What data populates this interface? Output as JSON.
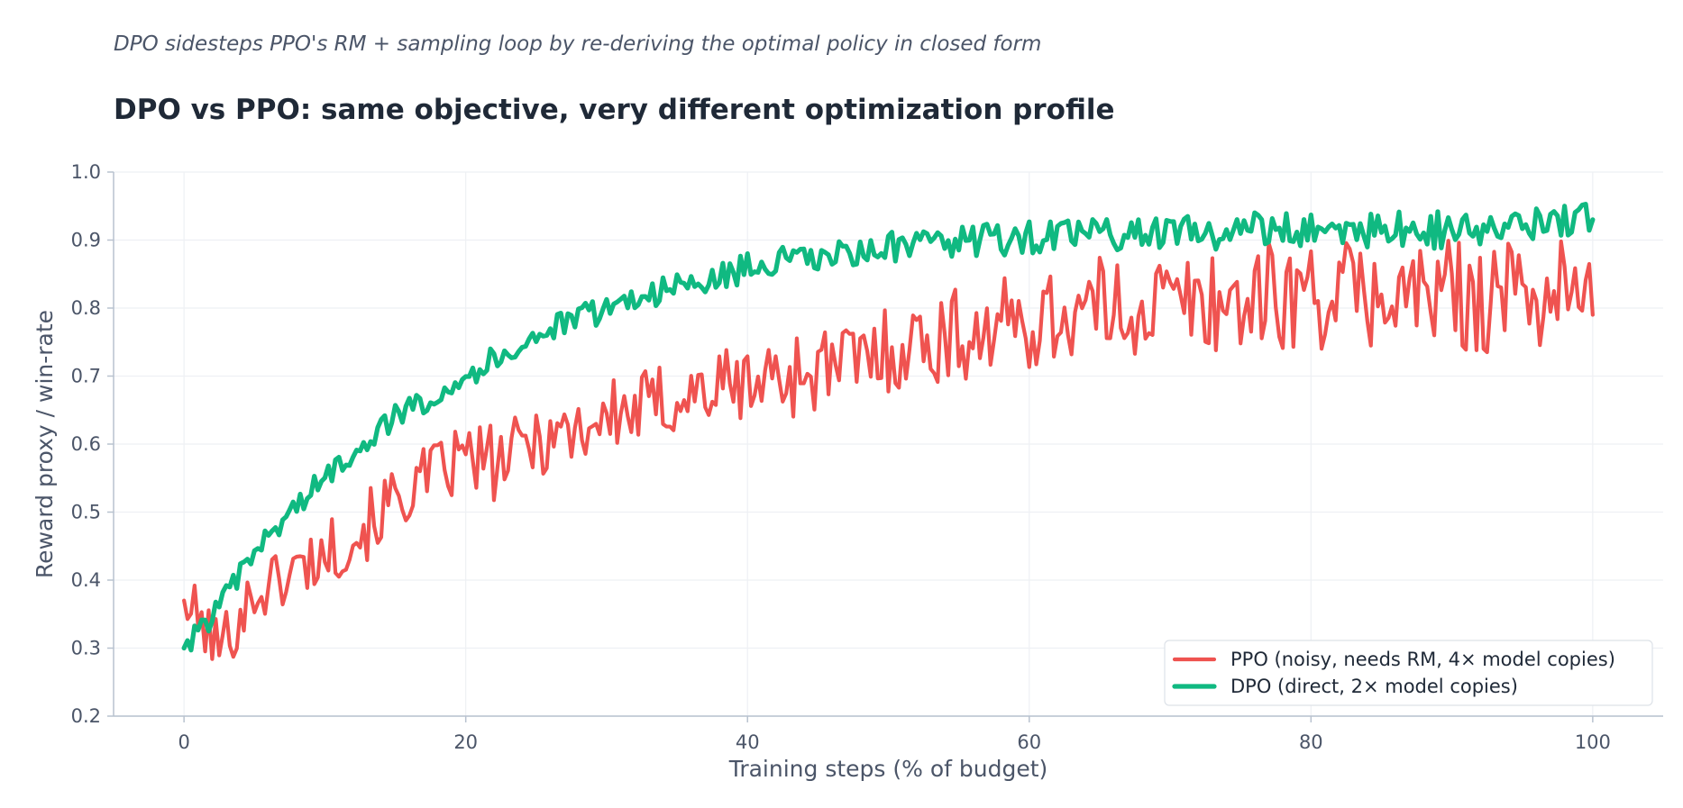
{
  "chart_data": {
    "type": "line",
    "title": "DPO vs PPO: same objective, very different optimization profile",
    "subtitle": "DPO sidesteps PPO's RM + sampling loop by re-deriving the optimal policy in closed form",
    "xlabel": "Training steps (% of budget)",
    "ylabel": "Reward proxy / win-rate",
    "xlim": [
      -5,
      105
    ],
    "ylim": [
      0.2,
      1.0
    ],
    "xticks": [
      0,
      20,
      40,
      60,
      80,
      100
    ],
    "yticks": [
      0.2,
      0.3,
      0.4,
      0.5,
      0.6,
      0.7,
      0.8,
      0.9,
      1.0
    ],
    "grid": true,
    "legend_position": "bottom-right",
    "x": [
      0,
      2.5,
      5,
      7.5,
      10,
      12.5,
      15,
      17.5,
      20,
      22.5,
      25,
      27.5,
      30,
      32.5,
      35,
      37.5,
      40,
      42.5,
      45,
      47.5,
      50,
      52.5,
      55,
      57.5,
      60,
      62.5,
      65,
      67.5,
      70,
      72.5,
      75,
      77.5,
      80,
      82.5,
      85,
      87.5,
      90,
      92.5,
      95,
      97.5,
      100
    ],
    "series": [
      {
        "name": "PPO (noisy, needs RM, 4× model copies)",
        "color": "#ef5350",
        "values": [
          0.37,
          0.3,
          0.38,
          0.41,
          0.44,
          0.47,
          0.52,
          0.55,
          0.58,
          0.57,
          0.61,
          0.62,
          0.64,
          0.65,
          0.67,
          0.68,
          0.69,
          0.7,
          0.71,
          0.72,
          0.74,
          0.75,
          0.76,
          0.77,
          0.78,
          0.79,
          0.8,
          0.8,
          0.81,
          0.81,
          0.81,
          0.82,
          0.82,
          0.82,
          0.82,
          0.82,
          0.82,
          0.82,
          0.82,
          0.83,
          0.79
        ]
      },
      {
        "name": "DPO (direct, 2× model copies)",
        "color": "#10b981",
        "values": [
          0.3,
          0.36,
          0.44,
          0.5,
          0.55,
          0.6,
          0.64,
          0.67,
          0.7,
          0.73,
          0.76,
          0.78,
          0.8,
          0.82,
          0.83,
          0.84,
          0.86,
          0.87,
          0.87,
          0.88,
          0.89,
          0.89,
          0.9,
          0.9,
          0.905,
          0.905,
          0.91,
          0.91,
          0.91,
          0.91,
          0.915,
          0.915,
          0.915,
          0.915,
          0.915,
          0.915,
          0.915,
          0.915,
          0.92,
          0.92,
          0.93
        ]
      }
    ]
  }
}
